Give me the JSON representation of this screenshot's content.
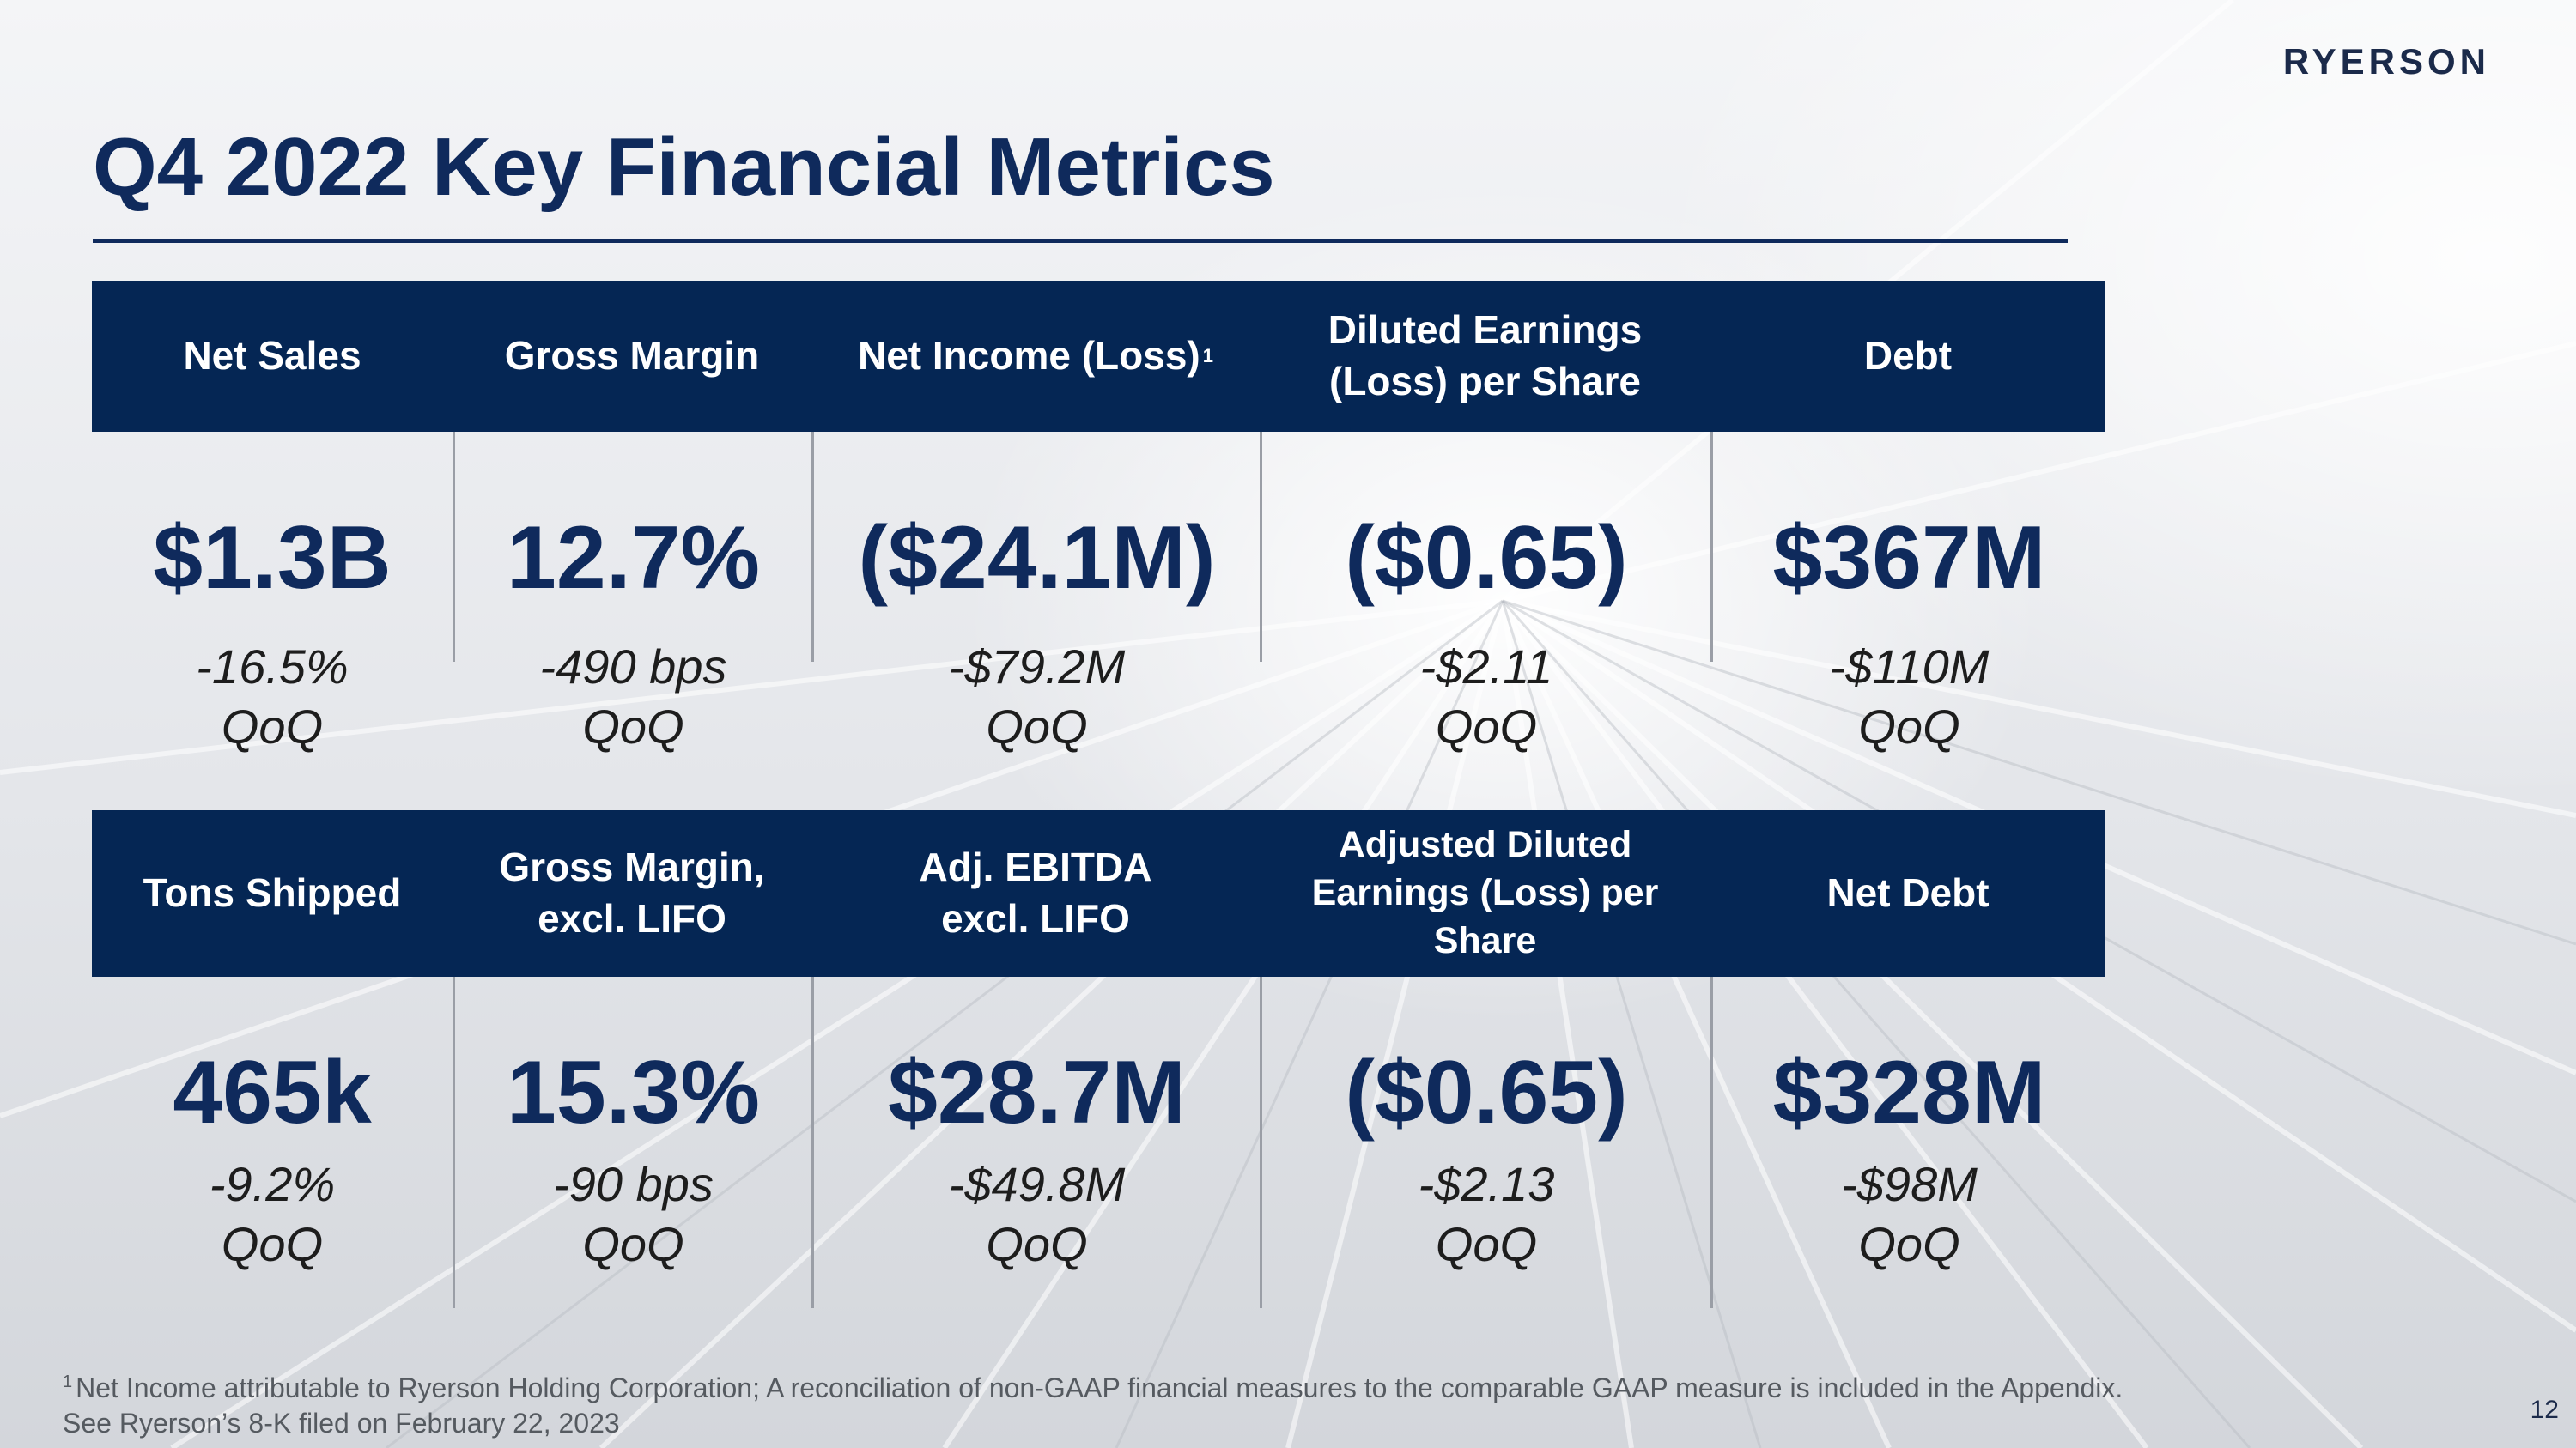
{
  "brand": {
    "logo_text": "RYERSON"
  },
  "slide": {
    "title": "Q4 2022 Key Financial Metrics",
    "page_number": "12"
  },
  "top_section": {
    "headers": [
      "Net Sales",
      "Gross Margin",
      "Net Income (Loss)",
      "Diluted Earnings (Loss) per Share",
      "Debt"
    ],
    "net_income_marker": "1",
    "values": [
      "$1.3B",
      "12.7%",
      "($24.1M)",
      "($0.65)",
      "$367M"
    ],
    "changes": [
      "-16.5%",
      "-490 bps",
      "-$79.2M",
      "-$2.11",
      "-$110M"
    ],
    "change_unit": "QoQ"
  },
  "bottom_section": {
    "headers": [
      "Tons Shipped",
      "Gross Margin, excl. LIFO",
      "Adj. EBITDA excl. LIFO",
      "Adjusted Diluted Earnings (Loss) per Share",
      "Net Debt"
    ],
    "values": [
      "465k",
      "15.3%",
      "$28.7M",
      "($0.65)",
      "$328M"
    ],
    "changes": [
      "-9.2%",
      "-90 bps",
      "-$49.8M",
      "-$2.13",
      "-$98M"
    ],
    "change_unit": "QoQ"
  },
  "footnote": {
    "marker": "1",
    "line1": "Net Income attributable to Ryerson Holding Corporation; A reconciliation of non-GAAP financial measures to the comparable GAAP measure is included in the Appendix.",
    "line2": "See Ryerson’s 8-K filed on February 22, 2023"
  }
}
